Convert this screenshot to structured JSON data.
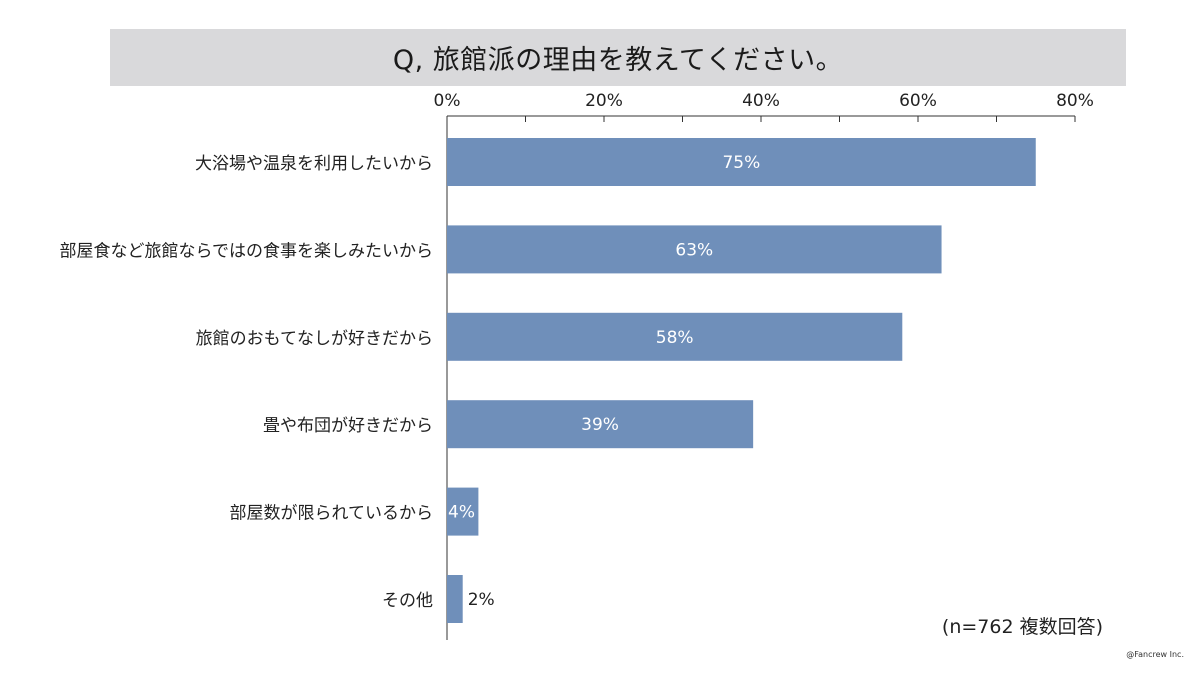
{
  "title": "Q, 旅館派の理由を教えてください。",
  "note": "(n=762 複数回答)",
  "copyright": "@Fancrew Inc.",
  "colors": {
    "bar": "#6f8fba",
    "title_band": "#d9d9db",
    "axis": "#333333"
  },
  "chart_data": {
    "type": "bar",
    "orientation": "horizontal",
    "categories": [
      "大浴場や温泉を利用したいから",
      "部屋食など旅館ならではの食事を楽しみたいから",
      "旅館のおもてなしが好きだから",
      "畳や布団が好きだから",
      "部屋数が限られているから",
      "その他"
    ],
    "values": [
      75,
      63,
      58,
      39,
      4,
      2
    ],
    "data_labels": [
      "75%",
      "63%",
      "58%",
      "39%",
      "4%",
      "2%"
    ],
    "xlim": [
      0,
      80
    ],
    "x_ticks": [
      0,
      20,
      40,
      60,
      80
    ],
    "x_tick_labels": [
      "0%",
      "20%",
      "40%",
      "60%",
      "80%"
    ],
    "x_minor_step": 10,
    "axis_position": "top",
    "grid": false,
    "legend": false
  }
}
